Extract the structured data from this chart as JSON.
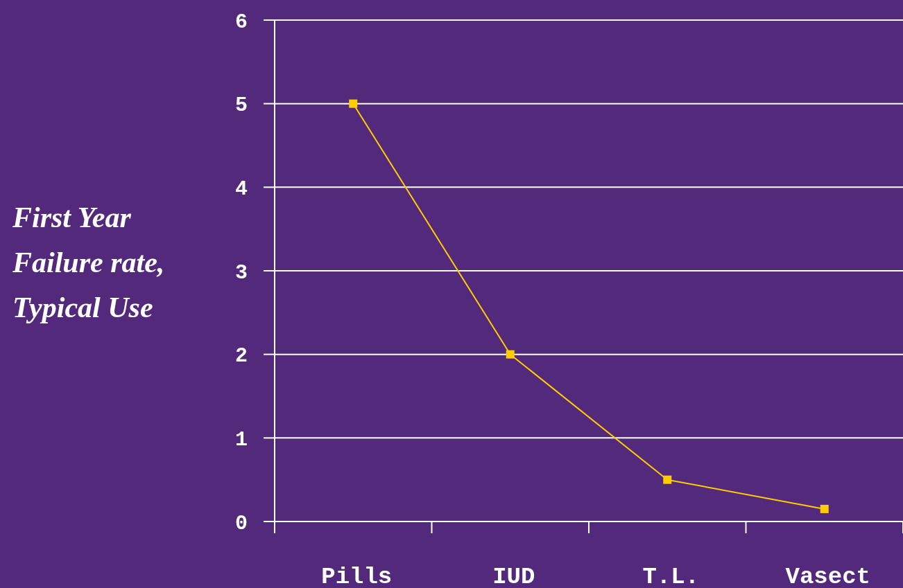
{
  "chart_data": {
    "type": "line",
    "ylabel": "First Year Failure rate, Typical Use",
    "categories": [
      "Pills",
      "IUD",
      "T.L.",
      "Vasect"
    ],
    "series": [
      {
        "color": "#ffcc00",
        "values": [
          5,
          2,
          0.5,
          0.15
        ]
      }
    ],
    "ylim": [
      0,
      6
    ],
    "yticks": [
      0,
      1,
      2,
      3,
      4,
      5,
      6
    ],
    "grid": "y",
    "marker": "square",
    "line_style": "solid"
  }
}
